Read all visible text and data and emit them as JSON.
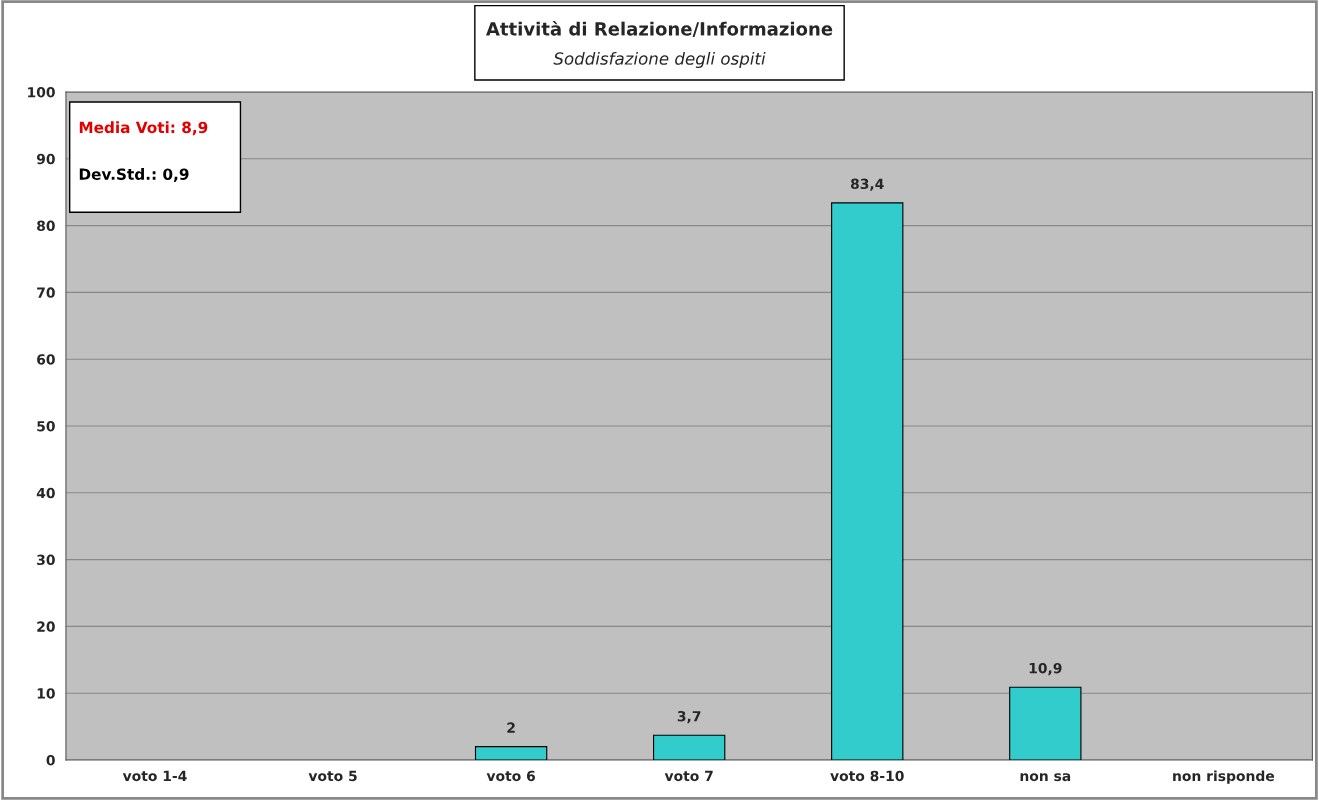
{
  "chart_data": {
    "type": "bar",
    "title": "Attività di Relazione/Informazione",
    "subtitle": "Soddisfazione degli ospiti",
    "categories": [
      "voto 1-4",
      "voto 5",
      "voto 6",
      "voto 7",
      "voto 8-10",
      "non sa",
      "non risponde"
    ],
    "values": [
      0,
      0,
      2,
      3.7,
      83.4,
      10.9,
      0
    ],
    "value_labels": [
      null,
      null,
      "2",
      "3,7",
      "83,4",
      "10,9",
      null
    ],
    "color": "#33cccc",
    "ylim": [
      0,
      100
    ],
    "yticks": [
      0,
      10,
      20,
      30,
      40,
      50,
      60,
      70,
      80,
      90,
      100
    ],
    "grid": "y",
    "annotations": [
      "Media Voti: 8,9",
      "Dev.Std.: 0,9"
    ]
  }
}
